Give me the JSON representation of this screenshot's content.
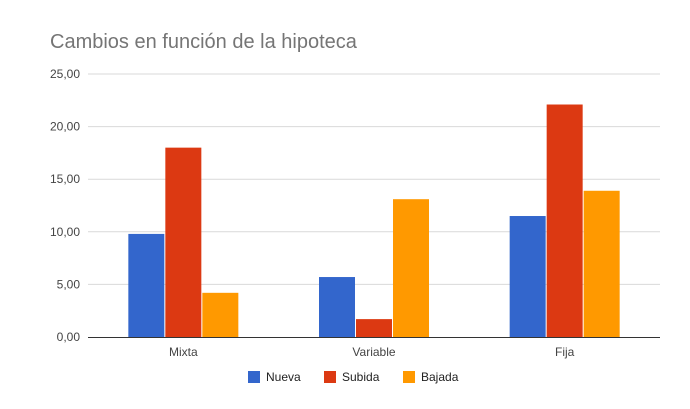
{
  "chart_data": {
    "type": "bar",
    "title": "Cambios en función de la hipoteca",
    "xlabel": "",
    "ylabel": "",
    "categories": [
      "Mixta",
      "Variable",
      "Fija"
    ],
    "series": [
      {
        "name": "Nueva",
        "color": "#3366cc",
        "values": [
          9.8,
          5.7,
          11.5
        ]
      },
      {
        "name": "Subida",
        "color": "#dc3912",
        "values": [
          18.0,
          1.7,
          22.1
        ]
      },
      {
        "name": "Bajada",
        "color": "#ff9900",
        "values": [
          4.2,
          13.1,
          13.9
        ]
      }
    ],
    "ylim": [
      0,
      25
    ],
    "yticks": [
      {
        "value": 0,
        "label": "0,00"
      },
      {
        "value": 5,
        "label": "5,00"
      },
      {
        "value": 10,
        "label": "10,00"
      },
      {
        "value": 15,
        "label": "15,00"
      },
      {
        "value": 20,
        "label": "20,00"
      },
      {
        "value": 25,
        "label": "25,00"
      }
    ],
    "grid": true,
    "legend_position": "bottom"
  }
}
